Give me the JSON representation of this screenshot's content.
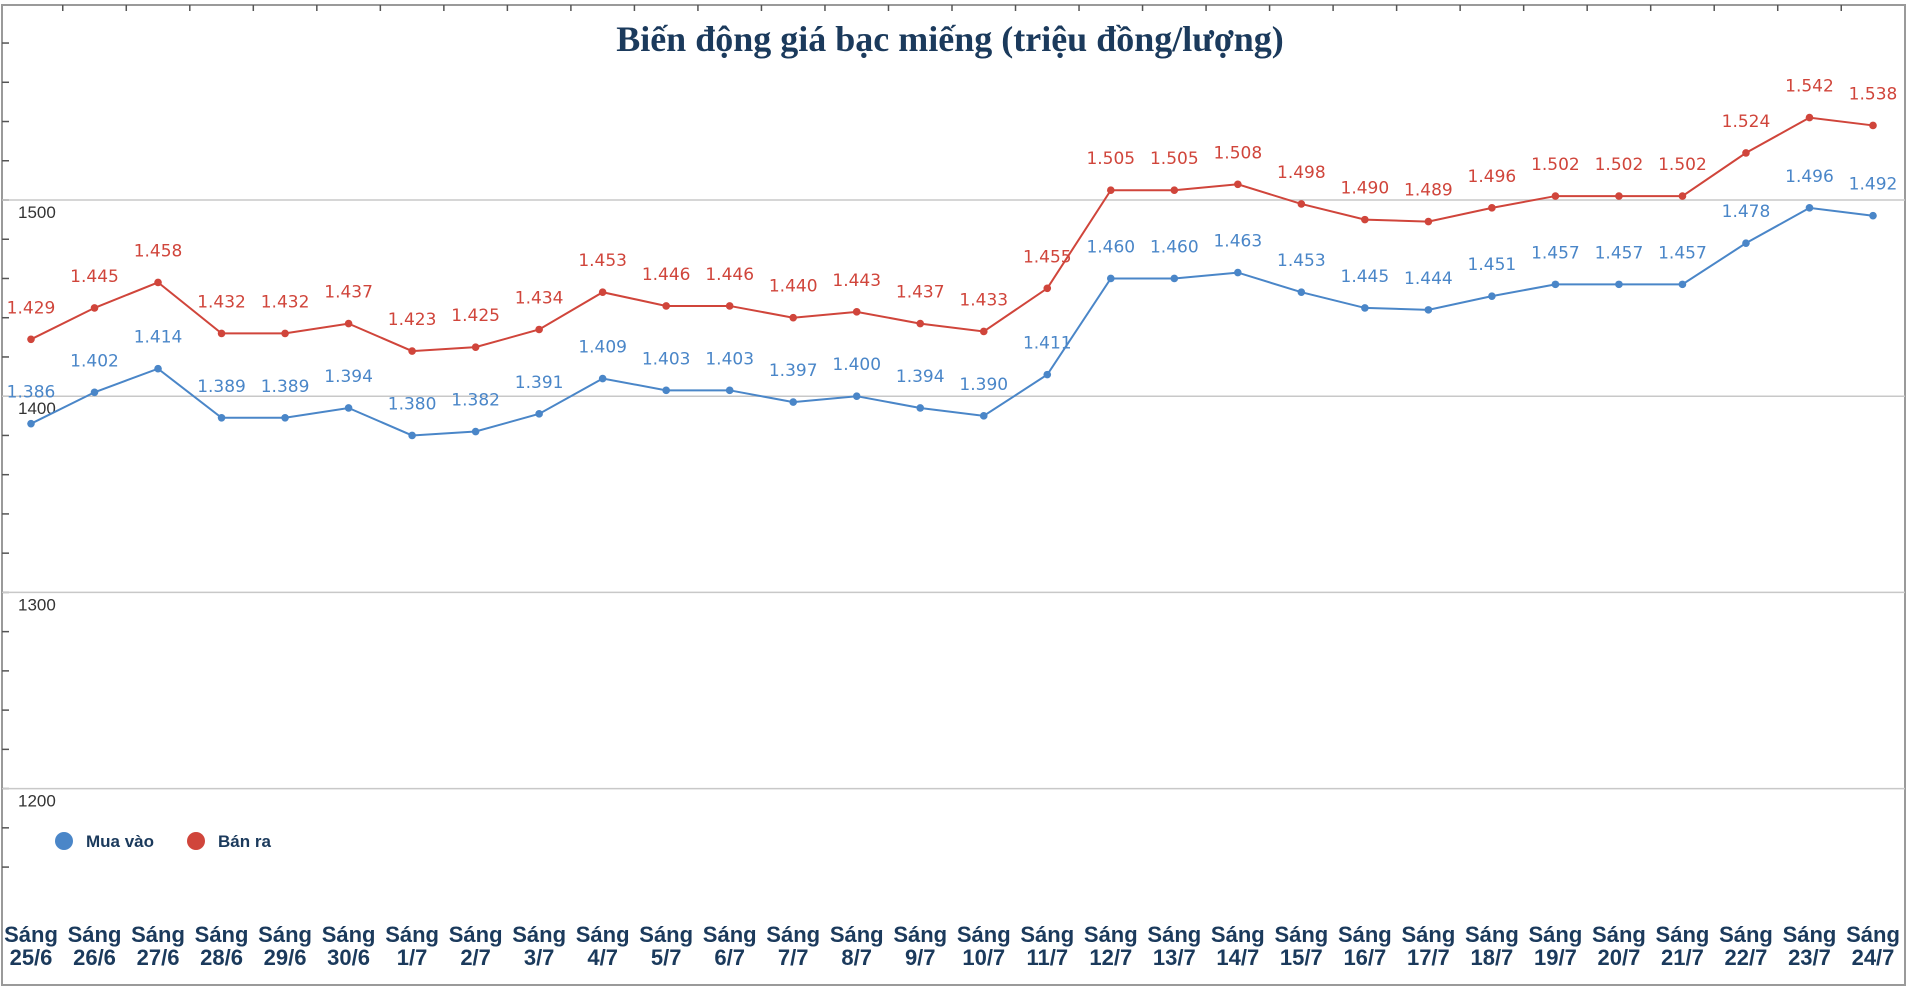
{
  "chart_data": {
    "type": "line",
    "title": "Biến động giá bạc miếng (triệu đồng/lượng)",
    "categories": [
      "Sáng 25/6",
      "Sáng 26/6",
      "Sáng 27/6",
      "Sáng 28/6",
      "Sáng 29/6",
      "Sáng 30/6",
      "Sáng 1/7",
      "Sáng 2/7",
      "Sáng 3/7",
      "Sáng 4/7",
      "Sáng 5/7",
      "Sáng 6/7",
      "Sáng 7/7",
      "Sáng 8/7",
      "Sáng 9/7",
      "Sáng 10/7",
      "Sáng 11/7",
      "Sáng 12/7",
      "Sáng 13/7",
      "Sáng 14/7",
      "Sáng 15/7",
      "Sáng 16/7",
      "Sáng 17/7",
      "Sáng 18/7",
      "Sáng 19/7",
      "Sáng 20/7",
      "Sáng 21/7",
      "Sáng 22/7",
      "Sáng 23/7",
      "Sáng 24/7"
    ],
    "series": [
      {
        "name": "Mua vào",
        "color": "#4a86c8",
        "values": [
          1386,
          1402,
          1414,
          1389,
          1389,
          1394,
          1380,
          1382,
          1391,
          1409,
          1403,
          1403,
          1397,
          1400,
          1394,
          1390,
          1411,
          1460,
          1460,
          1463,
          1453,
          1445,
          1444,
          1451,
          1457,
          1457,
          1457,
          1478,
          1496,
          1492
        ],
        "labels": [
          "1.386",
          "1.402",
          "1.414",
          "1.389",
          "1.389",
          "1.394",
          "1.380",
          "1.382",
          "1.391",
          "1.409",
          "1.403",
          "1.403",
          "1.397",
          "1.400",
          "1.394",
          "1.390",
          "1.411",
          "1.460",
          "1.460",
          "1.463",
          "1.453",
          "1.445",
          "1.444",
          "1.451",
          "1.457",
          "1.457",
          "1.457",
          "1.478",
          "1.496",
          "1.492"
        ]
      },
      {
        "name": "Bán ra",
        "color": "#d0453b",
        "values": [
          1429,
          1445,
          1458,
          1432,
          1432,
          1437,
          1423,
          1425,
          1434,
          1453,
          1446,
          1446,
          1440,
          1443,
          1437,
          1433,
          1455,
          1505,
          1505,
          1508,
          1498,
          1490,
          1489,
          1496,
          1502,
          1502,
          1502,
          1524,
          1542,
          1538
        ],
        "labels": [
          "1.429",
          "1.445",
          "1.458",
          "1.432",
          "1.432",
          "1.437",
          "1.423",
          "1.425",
          "1.434",
          "1.453",
          "1.446",
          "1.446",
          "1.440",
          "1.443",
          "1.437",
          "1.433",
          "1.455",
          "1.505",
          "1.505",
          "1.508",
          "1.498",
          "1.490",
          "1.489",
          "1.496",
          "1.502",
          "1.502",
          "1.502",
          "1.524",
          "1.542",
          "1.538"
        ]
      }
    ],
    "yticks": [
      1200,
      1300,
      1400,
      1500
    ],
    "ylim": [
      1150,
      1600
    ],
    "grid": true,
    "legend": "bottom-left"
  }
}
